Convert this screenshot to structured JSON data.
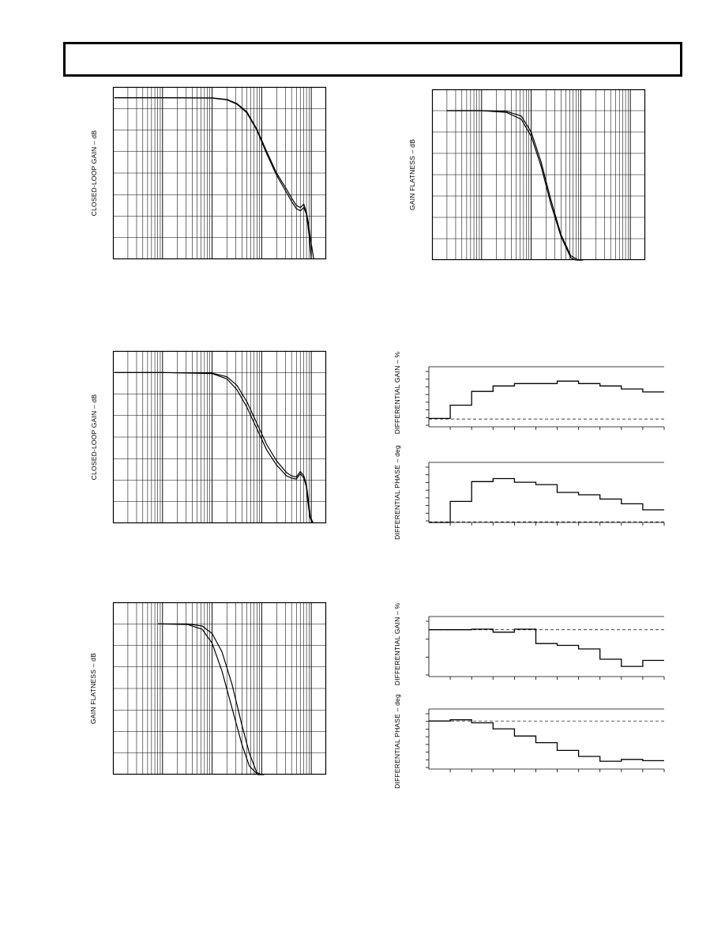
{
  "header": {
    "title": ""
  },
  "charts": [
    {
      "id": "chart1",
      "type": "line",
      "ylabel": "CLOSED-LOOP GAIN – dB",
      "xscale": "log",
      "x_decades": 4.3,
      "y_divisions": 8,
      "grid": true,
      "series": [
        {
          "x": [
            0.03,
            1,
            2,
            2.3,
            2.5,
            2.7,
            2.9,
            3.1,
            3.3,
            3.5,
            3.6,
            3.7,
            3.78,
            3.85,
            3.9,
            3.93,
            3.96,
            4.0
          ],
          "y": [
            0.5,
            0.5,
            0.52,
            0.6,
            0.8,
            1.2,
            2.0,
            3.1,
            4.1,
            4.9,
            5.3,
            5.65,
            5.75,
            5.6,
            5.9,
            6.4,
            7.0,
            8
          ]
        },
        {
          "x": [
            0.03,
            1,
            2,
            2.3,
            2.5,
            2.7,
            2.9,
            3.1,
            3.3,
            3.5,
            3.6,
            3.7,
            3.78,
            3.85,
            3.9,
            3.94,
            3.98,
            4.05
          ],
          "y": [
            0.5,
            0.5,
            0.51,
            0.58,
            0.77,
            1.15,
            1.95,
            3.0,
            4.0,
            4.75,
            5.15,
            5.5,
            5.6,
            5.45,
            5.8,
            6.3,
            7.0,
            8
          ]
        }
      ]
    },
    {
      "id": "chart2",
      "type": "line",
      "ylabel": "GAIN FLATNESS – dB",
      "xscale": "log",
      "x_decades": 4.3,
      "y_divisions": 8,
      "grid": true,
      "series": [
        {
          "x": [
            0.3,
            1,
            1.5,
            1.8,
            2.0,
            2.2,
            2.4,
            2.6,
            2.8,
            2.9,
            3.0
          ],
          "y": [
            1,
            1,
            1.08,
            1.4,
            2.2,
            3.6,
            5.4,
            6.9,
            7.9,
            8.0,
            8.0
          ]
        },
        {
          "x": [
            0.3,
            1,
            1.5,
            1.8,
            2.0,
            2.2,
            2.4,
            2.6,
            2.8,
            2.95,
            3.05
          ],
          "y": [
            1,
            1,
            1.03,
            1.25,
            2.0,
            3.4,
            5.2,
            6.8,
            7.8,
            8.0,
            8.0
          ]
        }
      ]
    },
    {
      "id": "chart3",
      "type": "line",
      "ylabel": "CLOSED-LOOP GAIN – dB",
      "xscale": "log",
      "x_decades": 4.3,
      "y_divisions": 8,
      "grid": true,
      "series": [
        {
          "x": [
            0.03,
            1,
            2,
            2.3,
            2.5,
            2.7,
            2.9,
            3.1,
            3.3,
            3.5,
            3.6,
            3.7,
            3.78,
            3.85,
            3.9,
            3.93,
            3.97,
            4.02
          ],
          "y": [
            1,
            1,
            1.05,
            1.3,
            1.8,
            2.6,
            3.6,
            4.6,
            5.3,
            5.8,
            5.9,
            5.95,
            5.7,
            5.9,
            6.3,
            7.0,
            7.7,
            8
          ]
        },
        {
          "x": [
            0.03,
            1,
            2,
            2.3,
            2.5,
            2.7,
            2.9,
            3.1,
            3.3,
            3.5,
            3.6,
            3.7,
            3.78,
            3.85,
            3.9,
            3.94,
            3.98,
            4.04
          ],
          "y": [
            1,
            1,
            1.03,
            1.2,
            1.6,
            2.35,
            3.35,
            4.35,
            5.1,
            5.65,
            5.8,
            5.85,
            5.6,
            5.8,
            6.2,
            6.9,
            7.7,
            8
          ]
        }
      ]
    },
    {
      "id": "chart4",
      "type": "line",
      "ylabel": "GAIN FLATNESS – dB",
      "xscale": "log",
      "x_decades": 4.3,
      "y_divisions": 8,
      "grid": true,
      "series": [
        {
          "x": [
            0.9,
            1.5,
            1.8,
            2.0,
            2.2,
            2.4,
            2.6,
            2.75,
            2.9,
            3.0
          ],
          "y": [
            1,
            1,
            1.1,
            1.45,
            2.3,
            3.8,
            5.7,
            7.0,
            7.9,
            8.0
          ]
        },
        {
          "x": [
            0.9,
            1.5,
            1.8,
            2.0,
            2.2,
            2.4,
            2.6,
            2.75,
            2.92,
            3.05
          ],
          "y": [
            1,
            1.03,
            1.25,
            1.9,
            3.2,
            4.9,
            6.6,
            7.6,
            8.0,
            8.0
          ]
        }
      ]
    },
    {
      "id": "chart5",
      "type": "step",
      "ylabel": "DIFFERENTIAL GAIN – %",
      "n_steps": 11,
      "ylim": [
        0,
        10
      ],
      "y_ticks": 8,
      "reference_level": 1.3,
      "steps": [
        1.4,
        3.6,
        5.9,
        6.8,
        7.2,
        7.2,
        7.6,
        7.2,
        6.8,
        6.3,
        5.8
      ]
    },
    {
      "id": "chart6",
      "type": "step",
      "ylabel": "DIFFERENTIAL PHASE – deg",
      "n_steps": 11,
      "ylim": [
        0,
        10
      ],
      "y_ticks": 8,
      "reference_level": 0.1,
      "steps": [
        0.0,
        3.5,
        6.8,
        7.3,
        6.7,
        6.3,
        5.0,
        4.6,
        3.9,
        3.1,
        2.1
      ]
    },
    {
      "id": "chart7",
      "type": "step",
      "ylabel": "DIFFERENTIAL GAIN – %",
      "n_steps": 11,
      "ylim": [
        0,
        10
      ],
      "y_ticks": 4,
      "reference_level": 7.8,
      "steps": [
        7.8,
        7.8,
        7.9,
        7.4,
        7.9,
        5.5,
        5.2,
        4.6,
        2.9,
        1.7,
        2.7
      ]
    },
    {
      "id": "chart8",
      "type": "step",
      "ylabel": "DIFFERENTIAL PHASE – deg",
      "n_steps": 11,
      "ylim": [
        0,
        10
      ],
      "y_ticks": 8,
      "reference_level": 8.0,
      "steps": [
        8.0,
        8.2,
        7.7,
        6.7,
        5.5,
        4.4,
        3.1,
        2.1,
        1.3,
        1.6,
        1.4
      ]
    }
  ]
}
